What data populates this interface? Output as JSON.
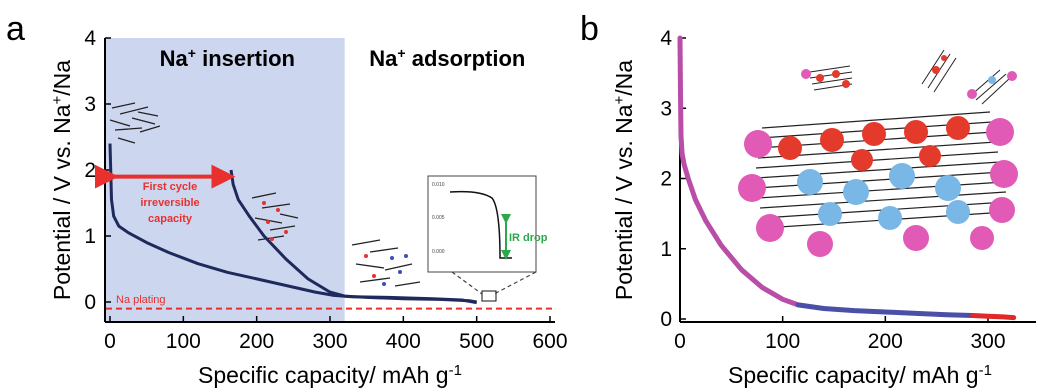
{
  "chart_data": [
    {
      "panel": "a",
      "type": "line",
      "xlabel": "Specific capacity/  mAh g",
      "xlabel_sup": "-1",
      "ylabel": "Potential / V vs. Na",
      "ylabel_sup": "+",
      "ylabel_suffix": "/Na",
      "xlim": [
        0,
        600
      ],
      "ylim": [
        -0.2,
        4
      ],
      "xticks": [
        "0",
        "100",
        "200",
        "300",
        "400",
        "500",
        "600"
      ],
      "yticks": [
        "0",
        "1",
        "2",
        "3",
        "4"
      ],
      "regions": [
        {
          "label": "Na",
          "sup": "+",
          "suffix": " insertion",
          "x_range": [
            0,
            320
          ],
          "color": "#ccd6ee"
        },
        {
          "label": "Na",
          "sup": "+",
          "suffix": " adsorption",
          "x_range": [
            320,
            600
          ],
          "color": "#ffffff"
        }
      ],
      "series": [
        {
          "color": "#1f2a5c",
          "x": [
            0,
            2,
            5,
            12,
            25,
            50,
            80,
            120,
            160,
            200,
            240,
            280,
            305,
            330,
            380,
            440,
            480,
            500
          ],
          "y": [
            2.4,
            1.55,
            1.3,
            1.15,
            1.05,
            0.9,
            0.75,
            0.58,
            0.45,
            0.35,
            0.25,
            0.15,
            0.1,
            0.08,
            0.07,
            0.05,
            0.03,
            -0.01
          ]
        },
        {
          "color": "#1f2a5c",
          "x": [
            165,
            168,
            175,
            190,
            210,
            240,
            270,
            300,
            320,
            350,
            400,
            450,
            490,
            500
          ],
          "y": [
            2.0,
            1.78,
            1.55,
            1.3,
            1.0,
            0.65,
            0.35,
            0.15,
            0.09,
            0.07,
            0.05,
            0.04,
            0.02,
            0.0
          ]
        }
      ],
      "hline": {
        "y": -0.1,
        "color": "#e8302f",
        "label": "Na plating"
      },
      "annotation": {
        "x_from": 0,
        "x_to": 170,
        "y": 1.9,
        "lines": [
          "First cycle",
          "irreversible",
          "capacity"
        ],
        "color": "#e8302f"
      },
      "inset": {
        "yticks": [
          "0.010",
          "0.005",
          "0.000"
        ],
        "label": "IR drop",
        "color": "#2aa84a"
      }
    },
    {
      "panel": "b",
      "type": "line",
      "xlabel": "Specific capacity/  mAh g",
      "xlabel_sup": "-1",
      "ylabel": "Potential / V vs. Na",
      "ylabel_sup": "+",
      "ylabel_suffix": "/Na",
      "xlim": [
        0,
        330
      ],
      "ylim": [
        0,
        4
      ],
      "xticks": [
        "0",
        "100",
        "200",
        "300"
      ],
      "yticks": [
        "0",
        "1",
        "2",
        "3",
        "4"
      ],
      "series": [
        {
          "color": "#b84ea8",
          "x": [
            0,
            0.5,
            1,
            2,
            4,
            8,
            15,
            25,
            40,
            60,
            80,
            100,
            115
          ],
          "y": [
            4.0,
            3.2,
            2.6,
            2.35,
            2.2,
            2.0,
            1.7,
            1.4,
            1.05,
            0.7,
            0.45,
            0.28,
            0.2
          ]
        },
        {
          "color": "#4a4fa8",
          "x": [
            115,
            140,
            170,
            200,
            230,
            260,
            285
          ],
          "y": [
            0.2,
            0.15,
            0.12,
            0.1,
            0.08,
            0.06,
            0.05
          ]
        },
        {
          "color": "#e02a2a",
          "x": [
            285,
            300,
            315,
            325
          ],
          "y": [
            0.05,
            0.04,
            0.03,
            0.02
          ]
        }
      ]
    }
  ]
}
